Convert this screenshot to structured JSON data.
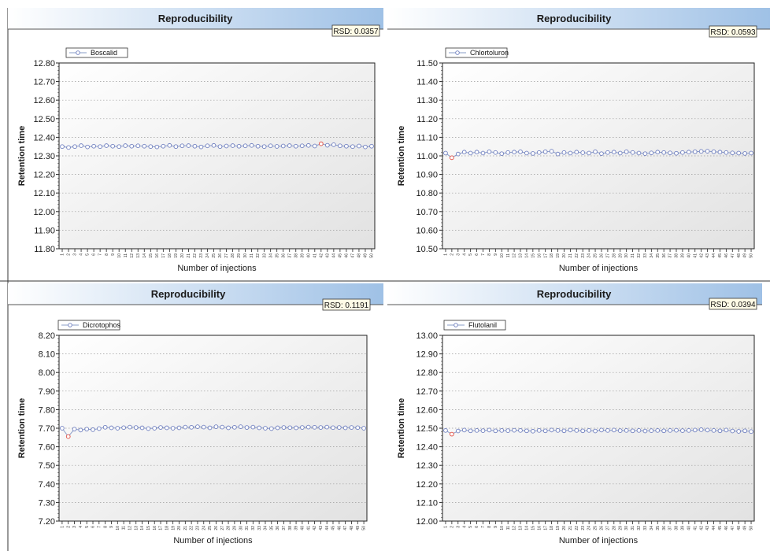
{
  "colors": {
    "line": "#8a9cc7",
    "marker": "#6f7fbf",
    "outlier": "#e0483c",
    "header_grad_start": "#ffffff",
    "header_grad_end": "#9fc1e6",
    "plot_bg_start": "#ffffff",
    "plot_bg_end": "#e2e2e2"
  },
  "chart_data": [
    {
      "type": "line",
      "title": "Reproducibility",
      "rsd": "RSD: 0.0357",
      "xlabel": "Number of injections",
      "ylabel": "Retention time",
      "yticks": [
        "12.80",
        "12.70",
        "12.60",
        "12.50",
        "12.40",
        "12.30",
        "12.20",
        "12.10",
        "12.00",
        "11.90",
        "11.80"
      ],
      "ylim": [
        11.8,
        12.8
      ],
      "x": [
        1,
        2,
        3,
        4,
        5,
        6,
        7,
        8,
        9,
        10,
        11,
        12,
        13,
        14,
        15,
        16,
        17,
        18,
        19,
        20,
        21,
        22,
        23,
        24,
        25,
        26,
        27,
        28,
        29,
        30,
        31,
        32,
        33,
        34,
        35,
        36,
        37,
        38,
        39,
        40,
        41,
        42,
        43,
        44,
        45,
        46,
        47,
        48,
        49,
        50
      ],
      "series": [
        {
          "name": "Boscalid",
          "values": [
            12.35,
            12.345,
            12.35,
            12.355,
            12.348,
            12.352,
            12.35,
            12.355,
            12.352,
            12.35,
            12.355,
            12.352,
            12.354,
            12.352,
            12.35,
            12.348,
            12.352,
            12.356,
            12.35,
            12.354,
            12.355,
            12.352,
            12.348,
            12.354,
            12.356,
            12.35,
            12.353,
            12.355,
            12.352,
            12.354,
            12.356,
            12.352,
            12.35,
            12.354,
            12.351,
            12.353,
            12.355,
            12.352,
            12.354,
            12.356,
            12.353,
            12.365,
            12.357,
            12.36,
            12.354,
            12.352,
            12.35,
            12.353,
            12.348,
            12.352
          ],
          "outlier_index": 41
        }
      ]
    },
    {
      "type": "line",
      "title": "Reproducibility",
      "rsd": "RSD: 0.0593",
      "xlabel": "Number of injections",
      "ylabel": "Retention time",
      "yticks": [
        "11.50",
        "11.40",
        "11.30",
        "11.20",
        "11.10",
        "11.00",
        "10.90",
        "10.80",
        "10.70",
        "10.60",
        "10.50"
      ],
      "ylim": [
        10.5,
        11.5
      ],
      "x": [
        1,
        2,
        3,
        4,
        5,
        6,
        7,
        8,
        9,
        10,
        11,
        12,
        13,
        14,
        15,
        16,
        17,
        18,
        19,
        20,
        21,
        22,
        23,
        24,
        25,
        26,
        27,
        28,
        29,
        30,
        31,
        32,
        33,
        34,
        35,
        36,
        37,
        38,
        39,
        40,
        41,
        42,
        43,
        44,
        45,
        46,
        47,
        48,
        49,
        50
      ],
      "series": [
        {
          "name": "Chlortoluron",
          "values": [
            11.015,
            10.99,
            11.01,
            11.02,
            11.015,
            11.02,
            11.015,
            11.022,
            11.018,
            11.012,
            11.018,
            11.02,
            11.022,
            11.015,
            11.013,
            11.018,
            11.022,
            11.025,
            11.01,
            11.018,
            11.015,
            11.02,
            11.017,
            11.015,
            11.022,
            11.012,
            11.018,
            11.02,
            11.015,
            11.022,
            11.018,
            11.015,
            11.012,
            11.016,
            11.02,
            11.018,
            11.016,
            11.014,
            11.018,
            11.02,
            11.022,
            11.024,
            11.025,
            11.022,
            11.02,
            11.018,
            11.016,
            11.015,
            11.013,
            11.015
          ],
          "outlier_index": 1
        }
      ]
    },
    {
      "type": "line",
      "title": "Reproducibility",
      "rsd": "RSD: 0.1191",
      "xlabel": "Number of injections",
      "ylabel": "Retention time",
      "yticks": [
        "8.20",
        "8.10",
        "8.00",
        "7.90",
        "7.80",
        "7.70",
        "7.60",
        "7.50",
        "7.40",
        "7.30",
        "7.20"
      ],
      "ylim": [
        7.2,
        8.2
      ],
      "x": [
        1,
        2,
        3,
        4,
        5,
        6,
        7,
        8,
        9,
        10,
        11,
        12,
        13,
        14,
        15,
        16,
        17,
        18,
        19,
        20,
        21,
        22,
        23,
        24,
        25,
        26,
        27,
        28,
        29,
        30,
        31,
        32,
        33,
        34,
        35,
        36,
        37,
        38,
        39,
        40,
        41,
        42,
        43,
        44,
        45,
        46,
        47,
        48,
        49,
        50
      ],
      "series": [
        {
          "name": "Dicrotophos",
          "values": [
            7.7,
            7.655,
            7.695,
            7.69,
            7.695,
            7.692,
            7.698,
            7.705,
            7.702,
            7.7,
            7.703,
            7.706,
            7.704,
            7.702,
            7.698,
            7.7,
            7.704,
            7.702,
            7.7,
            7.702,
            7.706,
            7.705,
            7.708,
            7.706,
            7.702,
            7.708,
            7.706,
            7.702,
            7.705,
            7.708,
            7.704,
            7.706,
            7.702,
            7.7,
            7.698,
            7.702,
            7.704,
            7.703,
            7.702,
            7.704,
            7.706,
            7.705,
            7.704,
            7.706,
            7.703,
            7.704,
            7.702,
            7.704,
            7.703,
            7.7
          ],
          "outlier_index": 1
        }
      ]
    },
    {
      "type": "line",
      "title": "Reproducibility",
      "rsd": "RSD: 0.0394",
      "xlabel": "Number of injections",
      "ylabel": "Retention time",
      "yticks": [
        "13.00",
        "12.90",
        "12.80",
        "12.70",
        "12.60",
        "12.50",
        "12.40",
        "12.30",
        "12.20",
        "12.10",
        "12.00"
      ],
      "ylim": [
        12.0,
        13.0
      ],
      "x": [
        1,
        2,
        3,
        4,
        5,
        6,
        7,
        8,
        9,
        10,
        11,
        12,
        13,
        14,
        15,
        16,
        17,
        18,
        19,
        20,
        21,
        22,
        23,
        24,
        25,
        26,
        27,
        28,
        29,
        30,
        31,
        32,
        33,
        34,
        35,
        36,
        37,
        38,
        39,
        40,
        41,
        42,
        43,
        44,
        45,
        46,
        47,
        48,
        49,
        50
      ],
      "series": [
        {
          "name": "Flutolanil",
          "values": [
            12.488,
            12.468,
            12.485,
            12.49,
            12.486,
            12.488,
            12.487,
            12.49,
            12.486,
            12.488,
            12.487,
            12.489,
            12.488,
            12.486,
            12.484,
            12.488,
            12.486,
            12.49,
            12.488,
            12.486,
            12.49,
            12.488,
            12.486,
            12.488,
            12.485,
            12.49,
            12.488,
            12.49,
            12.487,
            12.488,
            12.486,
            12.488,
            12.485,
            12.487,
            12.488,
            12.486,
            12.488,
            12.489,
            12.487,
            12.488,
            12.49,
            12.492,
            12.49,
            12.488,
            12.486,
            12.49,
            12.485,
            12.483,
            12.486,
            12.482
          ],
          "outlier_index": 1
        }
      ]
    }
  ]
}
